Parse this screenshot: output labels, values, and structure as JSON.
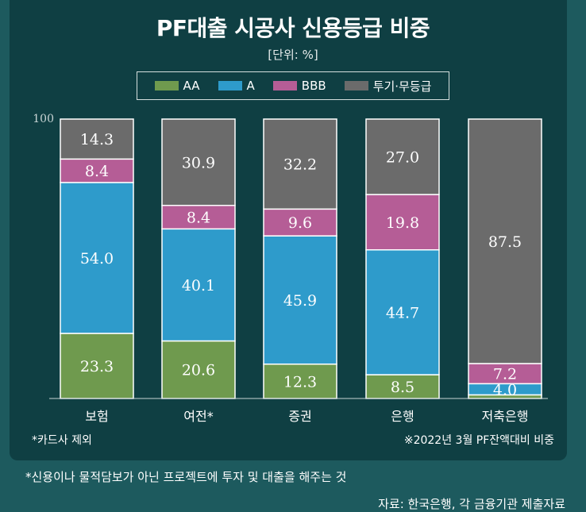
{
  "header": {
    "title": "PF대출 시공사 신용등급 비중",
    "unit": "[단위: %]"
  },
  "colors": {
    "AA": "#6f9a4e",
    "A": "#2e9bcb",
    "BBB": "#b55d96",
    "junk": "#6b6b6b"
  },
  "chart_data": {
    "type": "bar",
    "stacked": true,
    "categories": [
      "보험",
      "여전*",
      "증권",
      "은행",
      "저축은행"
    ],
    "series": [
      {
        "name": "AA",
        "values": [
          23.3,
          20.6,
          12.3,
          8.5,
          1.3
        ]
      },
      {
        "name": "A",
        "values": [
          54.0,
          40.1,
          45.9,
          44.7,
          4.0
        ]
      },
      {
        "name": "BBB",
        "values": [
          8.4,
          8.4,
          9.6,
          19.8,
          7.2
        ]
      },
      {
        "name": "투기·무등급",
        "values": [
          14.3,
          30.9,
          32.2,
          27.0,
          87.5
        ]
      }
    ],
    "segment_labels": [
      [
        "23.3",
        "20.6",
        "12.3",
        "8.5",
        ""
      ],
      [
        "54.0",
        "40.1",
        "45.9",
        "44.7",
        "4.0"
      ],
      [
        "8.4",
        "8.4",
        "9.6",
        "19.8",
        "7.2"
      ],
      [
        "14.3",
        "30.9",
        "32.2",
        "27.0",
        "87.5"
      ]
    ],
    "ylim": [
      0,
      100
    ],
    "y_ticks": [
      "100"
    ],
    "legend_position": "top"
  },
  "footnotes": {
    "left": "*카드사 제외",
    "right": "※2022년 3월 PF잔액대비 비중",
    "note": "*신용이나 물적담보가 아닌 프로젝트에 투자 및 대출을 해주는 것",
    "source": "자료: 한국은행, 각 금융기관 제출자료"
  }
}
